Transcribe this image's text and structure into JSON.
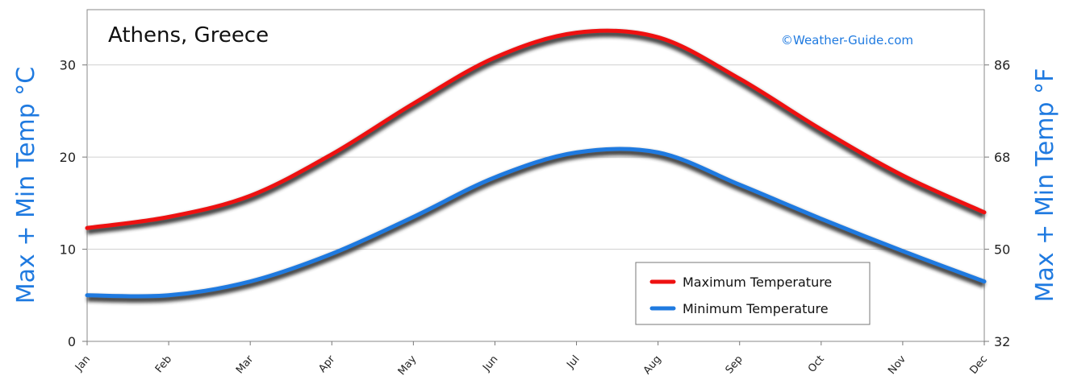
{
  "chart_data": {
    "type": "line",
    "title": "Athens, Greece",
    "watermark": "©Weather-Guide.com",
    "categories": [
      "Jan",
      "Feb",
      "Mar",
      "Apr",
      "May",
      "Jun",
      "Jul",
      "Aug",
      "Sep",
      "Oct",
      "Nov",
      "Dec"
    ],
    "series": [
      {
        "name": "Maximum Temperature",
        "color": "#ee1111",
        "values": [
          12.3,
          13.5,
          15.8,
          20.3,
          25.8,
          30.8,
          33.5,
          33.0,
          28.5,
          23.0,
          18.0,
          14.0
        ]
      },
      {
        "name": "Minimum Temperature",
        "color": "#1f7ae0",
        "values": [
          5.0,
          5.0,
          6.5,
          9.5,
          13.5,
          17.8,
          20.5,
          20.5,
          17.0,
          13.3,
          9.8,
          6.5
        ]
      }
    ],
    "ylabel_left": "Max + Min Temp °C",
    "ylabel_right": "Max + Min Temp °F",
    "yticks_left": [
      "0",
      "10",
      "20",
      "30"
    ],
    "yticks_right": [
      "32",
      "50",
      "68",
      "86"
    ],
    "ylim": [
      0,
      36
    ],
    "grid": true,
    "legend_position": "bottom-right",
    "label_color": "#1f7ae0"
  }
}
